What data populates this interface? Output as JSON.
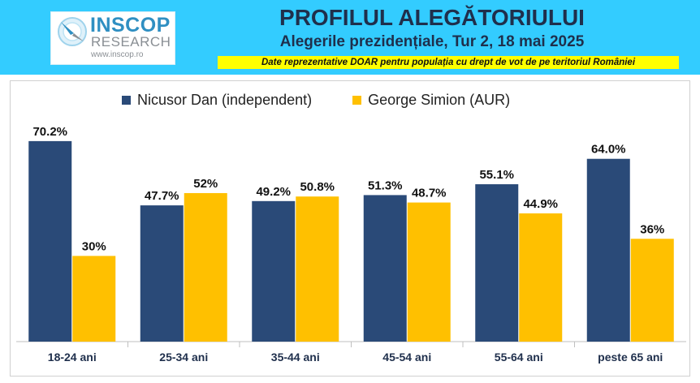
{
  "header": {
    "logo": {
      "name": "INSCOP",
      "sub": "RESEARCH",
      "url": "www.inscop.ro"
    },
    "title": "PROFILUL ALEGĂTORIULUI",
    "subtitle": "Alegerile prezidențiale, Tur 2, 18 mai 2025",
    "note": "Date reprezentative DOAR pentru populația cu drept de vot de pe teritoriul României"
  },
  "colors": {
    "header_bg": "#33ccff",
    "note_bg": "#ffff00",
    "series_1": "#2a4a78",
    "series_2": "#ffc000",
    "title_text": "#1f2f4c"
  },
  "chart_data": {
    "type": "bar",
    "title": "",
    "xlabel": "",
    "ylabel": "",
    "ylim": [
      0,
      100
    ],
    "grid": false,
    "legend_position": "top",
    "categories": [
      "18-24 ani",
      "25-34 ani",
      "35-44 ani",
      "45-54 ani",
      "55-64 ani",
      "peste 65 ani"
    ],
    "series": [
      {
        "name": "Nicusor Dan (independent)",
        "color": "#2a4a78",
        "values": [
          70.2,
          47.7,
          49.2,
          51.3,
          55.1,
          64.0
        ],
        "labels": [
          "70.2%",
          "47.7%",
          "49.2%",
          "51.3%",
          "55.1%",
          "64.0%"
        ]
      },
      {
        "name": "George Simion (AUR)",
        "color": "#ffc000",
        "values": [
          30,
          52,
          50.8,
          48.7,
          44.9,
          36
        ],
        "labels": [
          "30%",
          "52%",
          "50.8%",
          "48.7%",
          "44.9%",
          "36%"
        ]
      }
    ]
  }
}
